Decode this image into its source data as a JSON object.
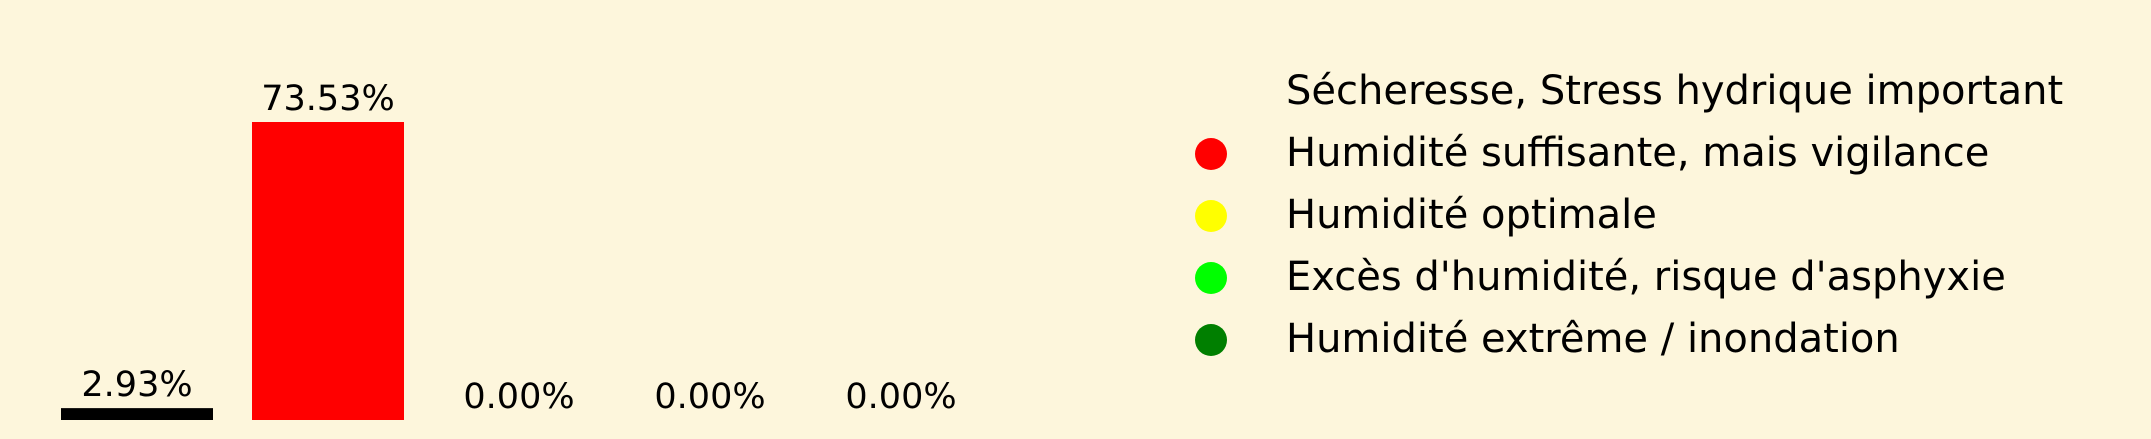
{
  "background": "#fdf6dc",
  "chart_data": {
    "type": "bar",
    "title": "",
    "xlabel": "",
    "ylabel": "",
    "ylim": [
      0,
      80
    ],
    "grid": false,
    "legend_placement": "right",
    "categories": [
      "Sécheresse, Stress hydrique important",
      "Humidité suffisante, mais vigilance",
      "Humidité optimale",
      "Excès d'humidité, risque d'asphyxie",
      "Humidité extrême / inondation"
    ],
    "values": [
      2.93,
      73.53,
      0.0,
      0.0,
      0.0
    ],
    "value_labels": [
      "2.93%",
      "73.53%",
      "0.00%",
      "0.00%",
      "0.00%"
    ],
    "colors": [
      "#000000",
      "#ff0000",
      "#ffff00",
      "#00ff00",
      "#007f00"
    ]
  }
}
